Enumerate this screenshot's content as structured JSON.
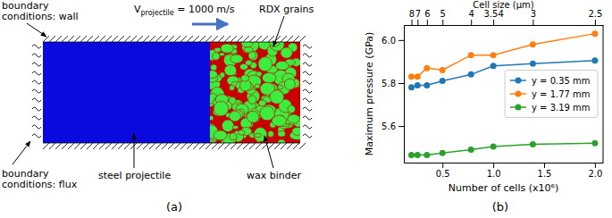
{
  "captions": [
    "(a)",
    "(b)"
  ],
  "diagram": {
    "wall_label": [
      "boundary",
      "conditions: wall"
    ],
    "flux_label": [
      "boundary",
      "conditions: flux"
    ],
    "velocity_label": {
      "symbol": "V",
      "subscript": "projectile",
      "rest": " = 1000 m/s"
    },
    "grains_label": "RDX grains",
    "projectile_label": "steel projectile",
    "binder_label": "wax binder"
  },
  "chart_data": {
    "type": "line",
    "x_label": "Number of cells (x10⁶)",
    "x2_label": "Cell size (μm)",
    "y_label": "Maximum pressure (GPa)",
    "x": [
      0.195,
      0.255,
      0.347,
      0.5,
      0.781,
      1.0,
      1.389,
      2.0
    ],
    "series": [
      {
        "name": "y = 0.35 mm",
        "color": "#1f77b4",
        "values": [
          5.78,
          5.79,
          5.79,
          5.81,
          5.84,
          5.88,
          5.89,
          5.905
        ]
      },
      {
        "name": "y = 1.77 mm",
        "color": "#ff7f0e",
        "values": [
          5.83,
          5.83,
          5.87,
          5.86,
          5.93,
          5.93,
          5.98,
          6.03
        ]
      },
      {
        "name": "y = 3.19 mm",
        "color": "#2ca02c",
        "values": [
          5.465,
          5.465,
          5.465,
          5.475,
          5.49,
          5.505,
          5.515,
          5.52
        ]
      }
    ],
    "xlim": [
      0.12,
      2.08
    ],
    "xticks": [
      {
        "value": 0.5,
        "label": "0.5"
      },
      {
        "value": 1,
        "label": "1.0"
      },
      {
        "value": 1.5,
        "label": "1.5"
      },
      {
        "value": 2,
        "label": "2.0"
      }
    ],
    "x2ticks": [
      {
        "value": 0.195,
        "label": "8"
      },
      {
        "value": 0.255,
        "label": "7"
      },
      {
        "value": 0.347,
        "label": "6"
      },
      {
        "value": 0.5,
        "label": "5"
      },
      {
        "value": 0.781,
        "label": "4"
      },
      {
        "value": 1.0,
        "label": "3.54"
      },
      {
        "value": 1.389,
        "label": "3"
      },
      {
        "value": 2.0,
        "label": "2.5"
      }
    ],
    "ylim": [
      5.43,
      6.07
    ],
    "yticks": [
      5.6,
      5.8,
      {
        "value": 6,
        "label": "6.0"
      }
    ],
    "legend": "center right",
    "grid": false,
    "marker": "circle"
  }
}
